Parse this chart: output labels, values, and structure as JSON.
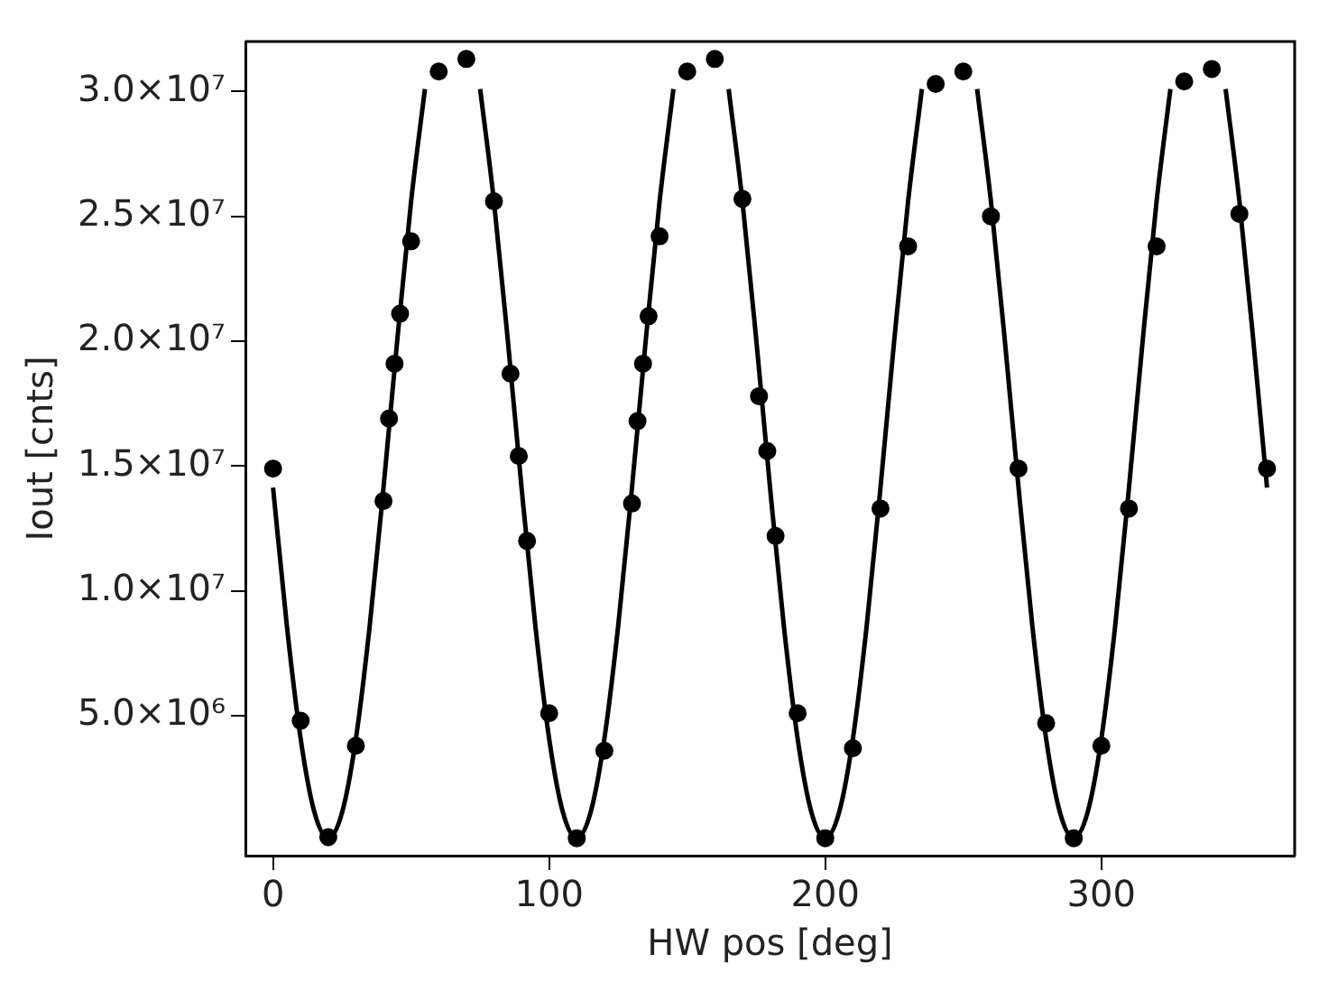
{
  "chart_data": {
    "type": "scatter",
    "xlabel": "HW pos [deg]",
    "ylabel": "Iout [cnts]",
    "xlim": [
      -10,
      370
    ],
    "xticks": [
      0,
      100,
      200,
      300
    ],
    "ylim": [
      -600000,
      32000000
    ],
    "yticks": [
      {
        "value": 5000000,
        "label": "5.0×10⁶"
      },
      {
        "value": 10000000,
        "label": "1.0×10⁷"
      },
      {
        "value": 15000000,
        "label": "1.5×10⁷"
      },
      {
        "value": 20000000,
        "label": "2.0×10⁷"
      },
      {
        "value": 25000000,
        "label": "2.5×10⁷"
      },
      {
        "value": 30000000,
        "label": "3.0×10⁷"
      }
    ],
    "grid": false,
    "legend": false,
    "series": [
      {
        "type": "scatter",
        "marker": "circle",
        "color": "#000000",
        "x": [
          0,
          10,
          20,
          30,
          40,
          42,
          44,
          46,
          50,
          60,
          70,
          80,
          86,
          89,
          92,
          100,
          110,
          120,
          130,
          132,
          134,
          136,
          140,
          150,
          160,
          170,
          176,
          179,
          182,
          190,
          200,
          210,
          220,
          230,
          240,
          250,
          260,
          270,
          280,
          290,
          300,
          310,
          320,
          330,
          340,
          350,
          360
        ],
        "values": [
          14900000,
          4800000,
          140000,
          3800000,
          13600000,
          16900000,
          19100000,
          21100000,
          24000000,
          30800000,
          31300000,
          25600000,
          18700000,
          15400000,
          12000000,
          5100000,
          100000,
          3600000,
          13500000,
          16800000,
          19100000,
          21000000,
          24200000,
          30800000,
          31300000,
          25700000,
          17800000,
          15600000,
          12200000,
          5100000,
          100000,
          3700000,
          13300000,
          23800000,
          30300000,
          30800000,
          25000000,
          14900000,
          4700000,
          100000,
          3800000,
          13300000,
          23800000,
          30400000,
          30900000,
          25100000,
          14900000
        ]
      },
      {
        "type": "line",
        "marker": "none",
        "line_style": "solid",
        "color": "#000000",
        "x": [
          0,
          5,
          10,
          15,
          20,
          25,
          30,
          35,
          40,
          45,
          50,
          55,
          65,
          75,
          80,
          85,
          90,
          95,
          100,
          105,
          110,
          115,
          120,
          125,
          130,
          135,
          140,
          145,
          155,
          165,
          170,
          175,
          180,
          185,
          190,
          195,
          200,
          205,
          210,
          215,
          220,
          225,
          230,
          235,
          245,
          255,
          260,
          265,
          270,
          275,
          280,
          285,
          290,
          295,
          300,
          305,
          310,
          315,
          320,
          325,
          335,
          345,
          350,
          355,
          360
        ],
        "values": [
          14140000,
          8600000,
          4080000,
          1130000,
          100000,
          1130000,
          4080000,
          8600000,
          14140000,
          20060000,
          25600000,
          30100000,
          null,
          30100000,
          25600000,
          20060000,
          14140000,
          8600000,
          4080000,
          1130000,
          100000,
          1130000,
          4080000,
          8600000,
          14140000,
          20060000,
          25600000,
          30100000,
          null,
          30100000,
          25600000,
          20060000,
          14140000,
          8600000,
          4080000,
          1130000,
          100000,
          1130000,
          4080000,
          8600000,
          14140000,
          20060000,
          25600000,
          30100000,
          null,
          30100000,
          25600000,
          20060000,
          14140000,
          8600000,
          4080000,
          1130000,
          100000,
          1130000,
          4080000,
          8600000,
          14140000,
          20060000,
          25600000,
          30100000,
          null,
          30100000,
          25600000,
          20060000,
          14140000
        ]
      }
    ]
  }
}
